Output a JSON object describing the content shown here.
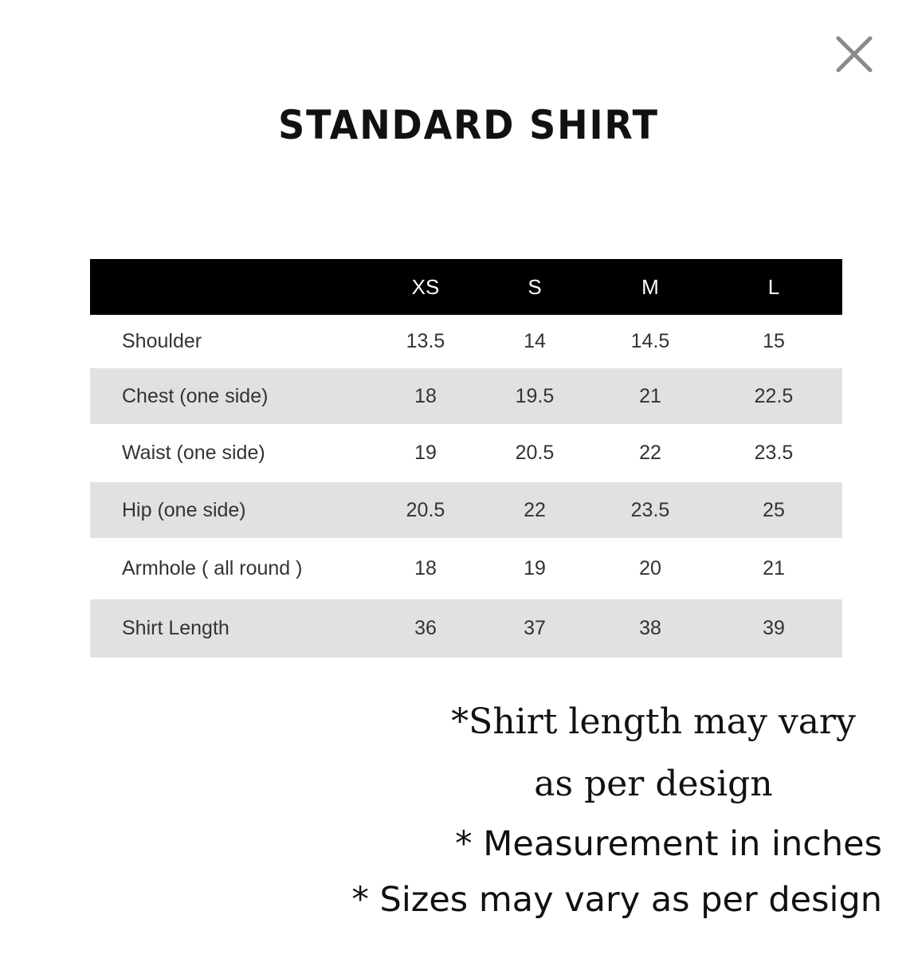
{
  "title": "STANDARD SHIRT",
  "close_icon": "close-x-icon",
  "colors": {
    "header_bg": "#000000",
    "header_text": "#ffffff",
    "alt_row_bg": "#e1e1e1"
  },
  "table": {
    "columns": [
      "",
      "XS",
      "S",
      "M",
      "L"
    ],
    "rows": [
      {
        "label": "Shoulder",
        "values": [
          "13.5",
          "14",
          "14.5",
          "15"
        ]
      },
      {
        "label": "Chest (one side)",
        "values": [
          "18",
          "19.5",
          "21",
          "22.5"
        ]
      },
      {
        "label": "Waist (one side)",
        "values": [
          "19",
          "20.5",
          "22",
          "23.5"
        ]
      },
      {
        "label": "Hip (one side)",
        "values": [
          "20.5",
          "22",
          "23.5",
          "25"
        ]
      },
      {
        "label": "Armhole ( all round )",
        "values": [
          "18",
          "19",
          "20",
          "21"
        ]
      },
      {
        "label": "Shirt Length",
        "values": [
          "36",
          "37",
          "38",
          "39"
        ]
      }
    ]
  },
  "notes": {
    "line1": "*Shirt length may vary",
    "line2": "as per design",
    "line3": "* Measurement in inches",
    "line4": "* Sizes may vary as per design"
  }
}
